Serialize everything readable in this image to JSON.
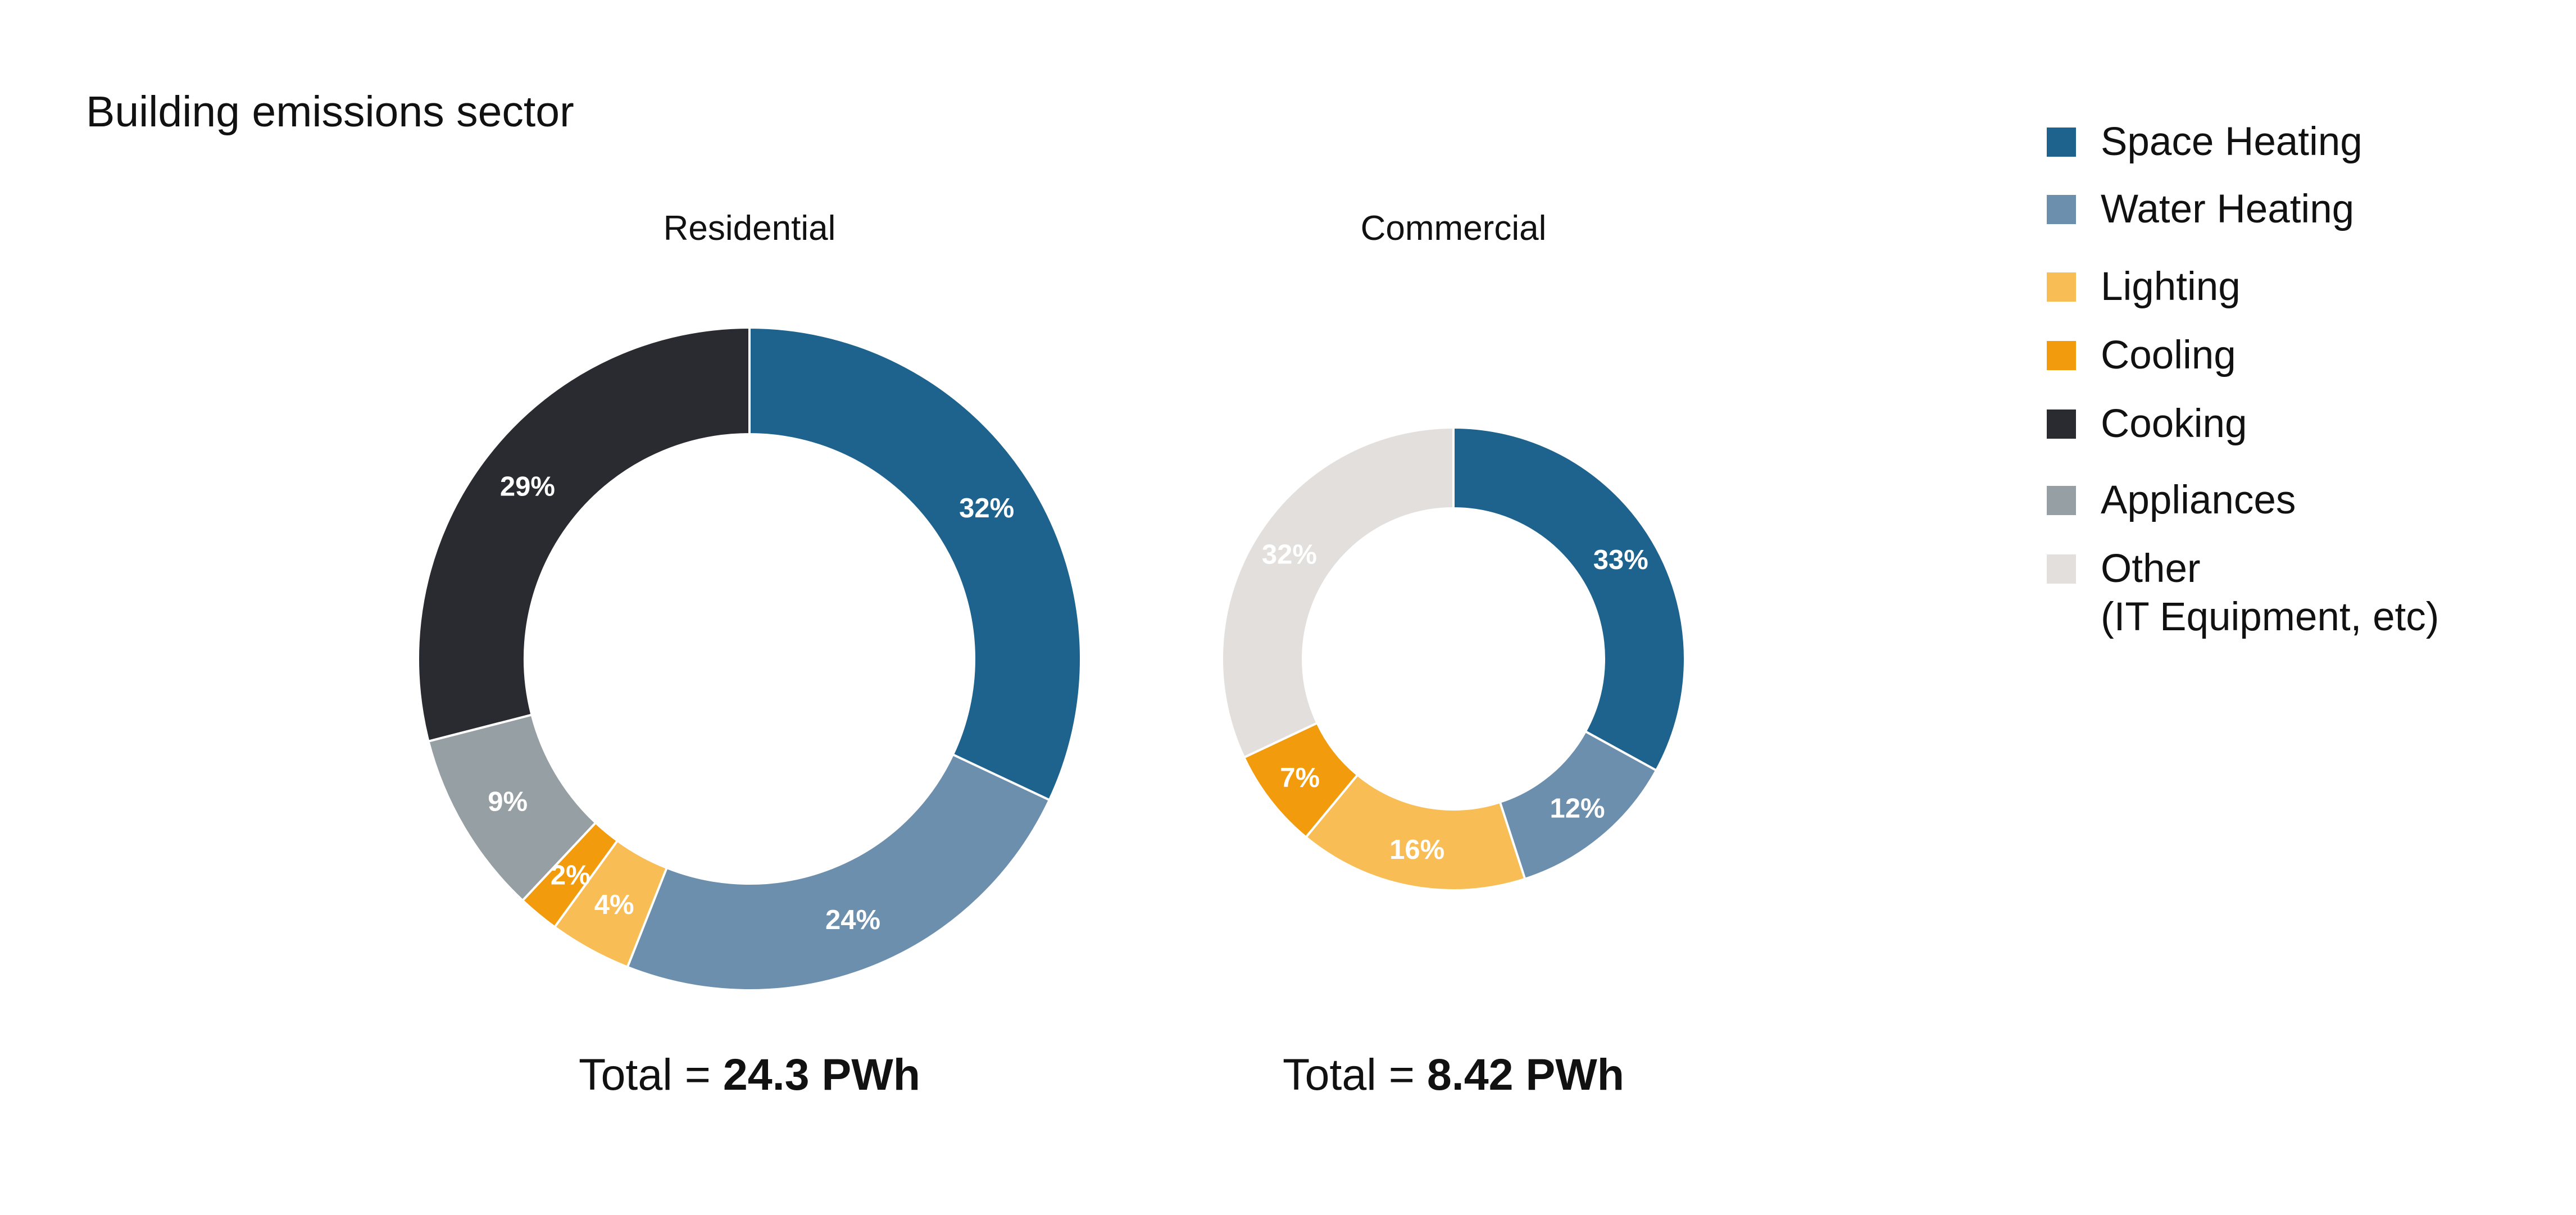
{
  "title": "Building emissions sector",
  "legend": [
    {
      "label": "Space Heating",
      "color": "#1e638e"
    },
    {
      "label": "Water Heating",
      "color": "#6d8fae"
    },
    {
      "label": "Lighting",
      "color": "#f9bd56"
    },
    {
      "label": "Cooling",
      "color": "#f29b0d"
    },
    {
      "label": "Cooking",
      "color": "#2a2b30"
    },
    {
      "label": "Appliances",
      "color": "#969fa4"
    },
    {
      "label": "Other",
      "label2": "(IT Equipment, etc)",
      "color": "#e3dfdc"
    }
  ],
  "chart_data": [
    {
      "type": "pie",
      "subtitle": "Residential",
      "total_prefix": "Total = ",
      "total_value": "24.3 PWh",
      "slices": [
        {
          "category": "Space Heating",
          "value": 32,
          "label": "32%",
          "color": "#1e638e",
          "label_color": "#ffffff"
        },
        {
          "category": "Water Heating",
          "value": 24,
          "label": "24%",
          "color": "#6d8fae",
          "label_color": "#ffffff"
        },
        {
          "category": "Lighting",
          "value": 4,
          "label": "4%",
          "color": "#f9bd56",
          "label_color": "#ffffff"
        },
        {
          "category": "Cooling",
          "value": 2,
          "label": "2%",
          "color": "#f29b0d",
          "label_color": "#ffffff"
        },
        {
          "category": "Appliances",
          "value": 9,
          "label": "9%",
          "color": "#969fa4",
          "label_color": "#ffffff"
        },
        {
          "category": "Cooking",
          "value": 29,
          "label": "29%",
          "color": "#2a2b30",
          "label_color": "#ffffff"
        }
      ]
    },
    {
      "type": "pie",
      "subtitle": "Commercial",
      "total_prefix": "Total = ",
      "total_value": "8.42 PWh",
      "slices": [
        {
          "category": "Space Heating",
          "value": 33,
          "label": "33%",
          "color": "#1e638e",
          "label_color": "#ffffff"
        },
        {
          "category": "Water Heating",
          "value": 12,
          "label": "12%",
          "color": "#6d8fae",
          "label_color": "#ffffff"
        },
        {
          "category": "Lighting",
          "value": 16,
          "label": "16%",
          "color": "#f9bd56",
          "label_color": "#ffffff"
        },
        {
          "category": "Cooling",
          "value": 7,
          "label": "7%",
          "color": "#f29b0d",
          "label_color": "#ffffff"
        },
        {
          "category": "Other",
          "value": 32,
          "label": "32%",
          "color": "#e3dfdc",
          "label_color": "#ffffff"
        }
      ]
    }
  ]
}
